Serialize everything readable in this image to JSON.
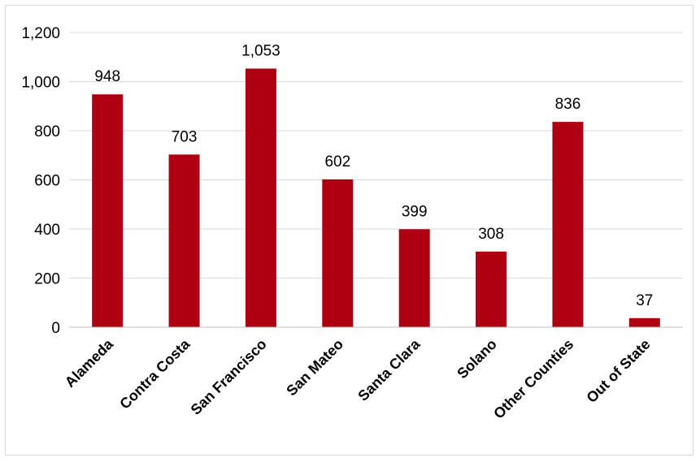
{
  "chart_data": {
    "type": "bar",
    "title": "",
    "xlabel": "",
    "ylabel": "",
    "categories": [
      "Alameda",
      "Contra Costa",
      "San Francisco",
      "San Mateo",
      "Santa Clara",
      "Solano",
      "Other Counties",
      "Out of State"
    ],
    "values": [
      948,
      703,
      1053,
      602,
      399,
      308,
      836,
      37
    ],
    "data_labels": [
      "948",
      "703",
      "1,053",
      "602",
      "399",
      "308",
      "836",
      "37"
    ],
    "ylim": [
      0,
      1200
    ],
    "yticks": [
      0,
      200,
      400,
      600,
      800,
      1000,
      1200
    ],
    "ytick_labels": [
      "0",
      "200",
      "400",
      "600",
      "800",
      "1,000",
      "1,200"
    ],
    "grid": true,
    "legend": "none",
    "bar_color": "#ae0011"
  }
}
